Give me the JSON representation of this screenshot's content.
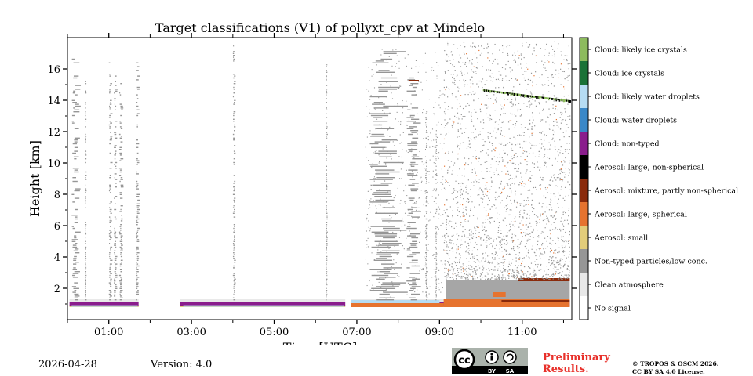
{
  "chart_data": {
    "type": "heatmap",
    "title": "Target classifications (V1) of pollyxt_cpv at Mindelo",
    "xlabel": "Time [UTC]",
    "ylabel": "Height [km]",
    "xlim_hours": [
      0.0,
      12.2
    ],
    "ylim_km": [
      0.0,
      18.0
    ],
    "x_ticks": [
      {
        "hour": 1,
        "label": "01:00"
      },
      {
        "hour": 3,
        "label": "03:00"
      },
      {
        "hour": 5,
        "label": "05:00"
      },
      {
        "hour": 7,
        "label": "07:00"
      },
      {
        "hour": 9,
        "label": "09:00"
      },
      {
        "hour": 11,
        "label": "11:00"
      }
    ],
    "x_minor_hours": [
      0,
      2,
      4,
      6,
      8,
      10,
      12
    ],
    "y_ticks": [
      {
        "km": 2,
        "label": "2"
      },
      {
        "km": 4,
        "label": "4"
      },
      {
        "km": 6,
        "label": "6"
      },
      {
        "km": 8,
        "label": "8"
      },
      {
        "km": 10,
        "label": "10"
      },
      {
        "km": 12,
        "label": "12"
      },
      {
        "km": 14,
        "label": "14"
      },
      {
        "km": 16,
        "label": "16"
      }
    ],
    "legend": [
      {
        "label": "No signal",
        "color": "#ffffff"
      },
      {
        "label": "Clean atmosphere",
        "color": "#e9e9e9"
      },
      {
        "label": "Non-typed particles/low conc.",
        "color": "#969696"
      },
      {
        "label": "Aerosol: small",
        "color": "#e3cd7a"
      },
      {
        "label": "Aerosol: large, spherical",
        "color": "#e6732f"
      },
      {
        "label": "Aerosol: mixture, partly non-spherical",
        "color": "#8a2a0b"
      },
      {
        "label": "Aerosol: large, non-spherical",
        "color": "#000000"
      },
      {
        "label": "Cloud: non-typed",
        "color": "#8a1d8c"
      },
      {
        "label": "Cloud: water droplets",
        "color": "#3a88c8"
      },
      {
        "label": "Cloud: likely water droplets",
        "color": "#b6dcf3"
      },
      {
        "label": "Cloud: ice crystals",
        "color": "#1a7237"
      },
      {
        "label": "Cloud: likely ice crystals",
        "color": "#8dbb5e"
      }
    ],
    "data_gaps_hours": [
      [
        1.72,
        2.72
      ],
      [
        6.72,
        6.85
      ]
    ],
    "cloud_layer_km": [
      0.9,
      1.1
    ],
    "aerosol_layer_km": [
      0.8,
      1.3
    ],
    "dust_layer_top_km": 2.5,
    "ice_cloud_km": [
      14.0,
      14.7
    ]
  },
  "footer": {
    "date": "2026-04-28",
    "version": "Version: 4.0",
    "preliminary_line1": "Preliminary",
    "preliminary_line2": "Results.",
    "copyright_line1": "© TROPOS & OSCM 2026.",
    "copyright_line2": "CC BY SA 4.0 License.",
    "cc_badge_text": [
      "cc",
      "BY",
      "SA"
    ]
  }
}
